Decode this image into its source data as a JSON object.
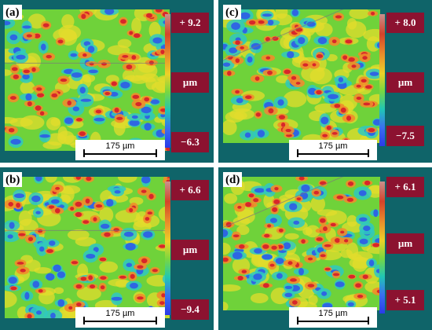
{
  "panels": [
    {
      "id": "a",
      "label": "(a)",
      "max": "+ 9.2",
      "min": "−6.3",
      "unit": "µm",
      "scale": "175 µm"
    },
    {
      "id": "b",
      "label": "(b)",
      "max": "+ 6.6",
      "min": "−9.4",
      "unit": "µm",
      "scale": "175 µm"
    },
    {
      "id": "c",
      "label": "(c)",
      "max": "+ 8.0",
      "min": "−7.5",
      "unit": "µm",
      "scale": "175 µm"
    },
    {
      "id": "d",
      "label": "(d)",
      "max": "+ 6.1",
      "min": "+ 5.1",
      "unit": "µm",
      "scale": "175 µm"
    }
  ],
  "colors": {
    "panel_bg": "#0f6469",
    "value_box": "#8c1230"
  }
}
